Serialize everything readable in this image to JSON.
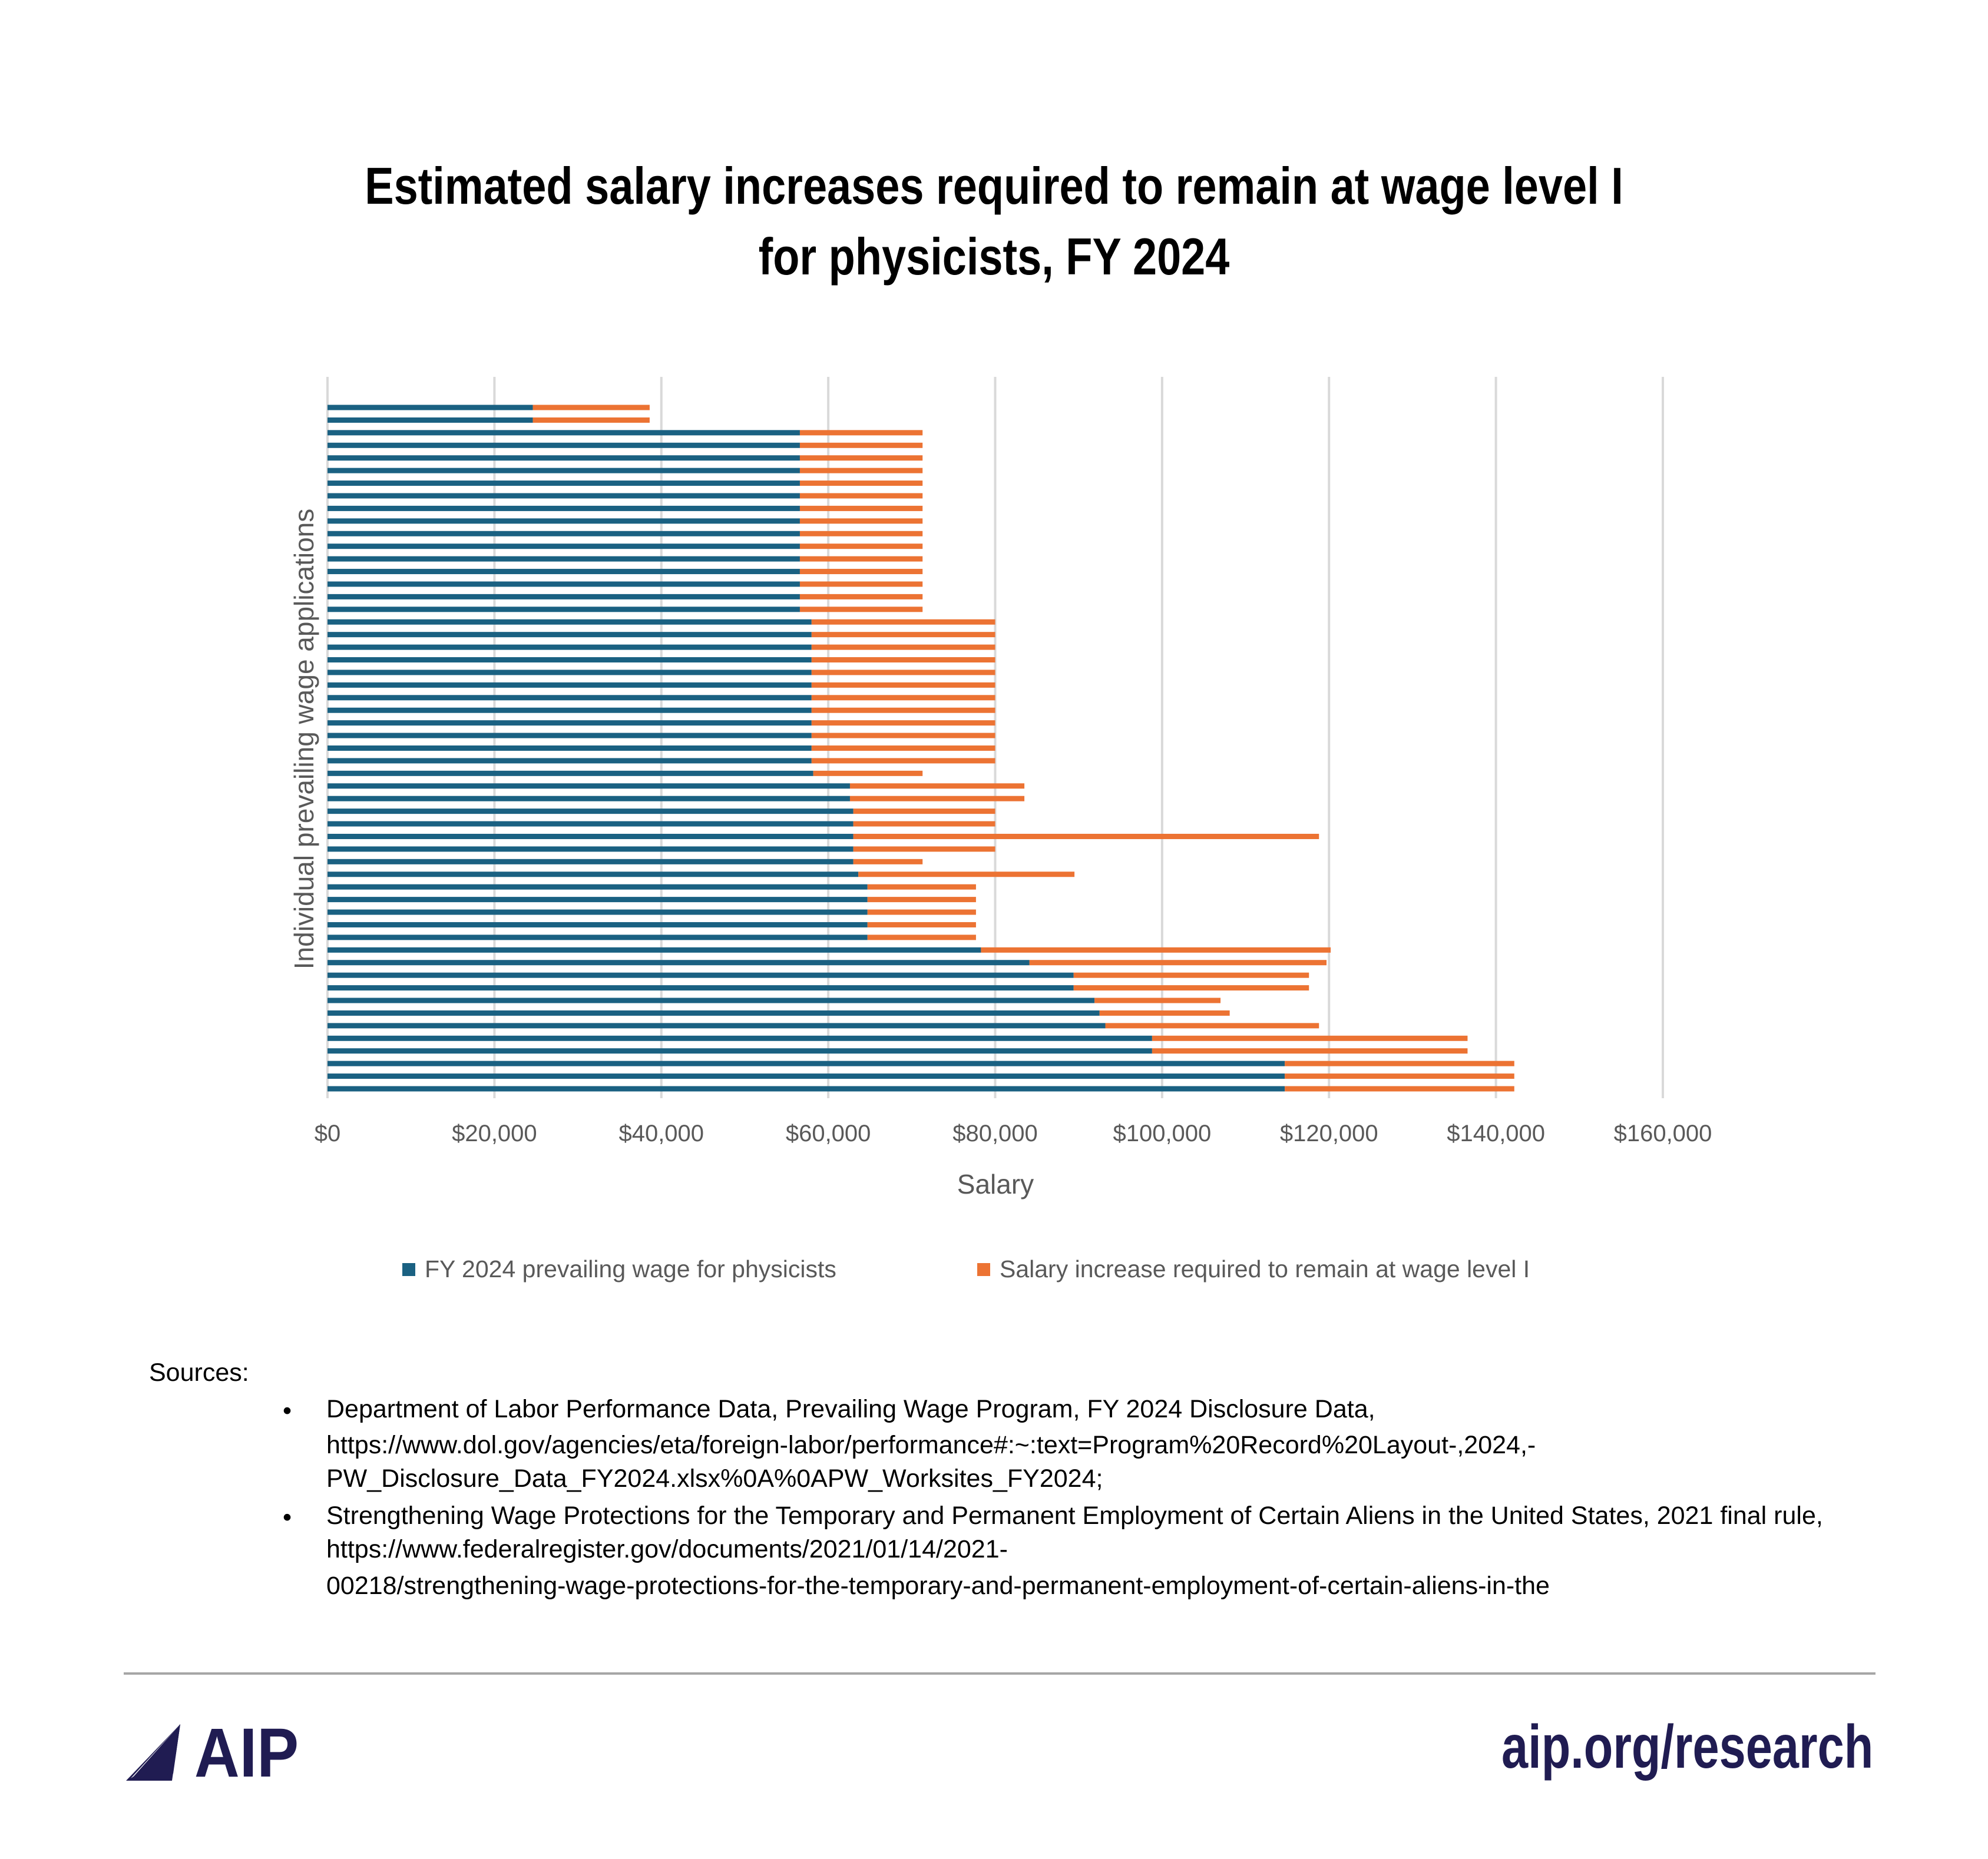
{
  "chart_data": {
    "type": "bar",
    "orientation": "horizontal",
    "stacked": true,
    "title": "Estimated salary increases required to remain at wage level I for physicists, FY 2024",
    "title_lines": [
      "Estimated salary increases required to remain at wage level I",
      "for physicists, FY 2024"
    ],
    "xlabel": "Salary",
    "ylabel": "Individual prevailing wage applications",
    "xlim": [
      0,
      160000
    ],
    "x_ticks": [
      0,
      20000,
      40000,
      60000,
      80000,
      100000,
      120000,
      140000,
      160000
    ],
    "x_tick_labels": [
      "$0",
      "$20,000",
      "$40,000",
      "$60,000",
      "$80,000",
      "$100,000",
      "$120,000",
      "$140,000",
      "$160,000"
    ],
    "grid": "vertical",
    "legend_position": "bottom",
    "series": [
      {
        "name": "FY 2024 prevailing wage for physicists",
        "color": "#1a6182",
        "values": [
          24600,
          24600,
          56600,
          56600,
          56600,
          56600,
          56600,
          56600,
          56600,
          56600,
          56600,
          56600,
          56600,
          56600,
          56600,
          56600,
          56600,
          58000,
          58000,
          58000,
          58000,
          58000,
          58000,
          58000,
          58000,
          58000,
          58000,
          58000,
          58000,
          58200,
          62600,
          62600,
          63000,
          63000,
          63000,
          63000,
          63000,
          63600,
          64700,
          64700,
          64700,
          64700,
          64700,
          78300,
          84100,
          89400,
          89400,
          91900,
          92500,
          93200,
          98800,
          98800,
          114700,
          114700,
          114700
        ]
      },
      {
        "name": "Salary increase required to remain at wage level I",
        "color": "#ec7333",
        "values": [
          14000,
          14000,
          14700,
          14700,
          14700,
          14700,
          14700,
          14700,
          14700,
          14700,
          14700,
          14700,
          14700,
          14700,
          14700,
          14700,
          14700,
          22000,
          22000,
          22000,
          22000,
          22000,
          22000,
          22000,
          22000,
          22000,
          22000,
          22000,
          22000,
          13100,
          20900,
          20900,
          17000,
          17000,
          55800,
          17000,
          8300,
          25900,
          13000,
          13000,
          13000,
          13000,
          13000,
          41900,
          35600,
          28200,
          28200,
          15100,
          15600,
          25600,
          37800,
          37800,
          27500,
          27500,
          27500
        ]
      }
    ]
  },
  "sources": {
    "heading": "Sources:",
    "bullet": "•",
    "items": [
      {
        "lines": [
          "Department of Labor Performance Data, Prevailing Wage Program, FY 2024 Disclosure Data,",
          "https://www.dol.gov/agencies/eta/foreign-labor/performance#:~:text=Program%20Record%20Layout-,2024,-",
          "PW_Disclosure_Data_FY2024.xlsx%0A%0APW_Worksites_FY2024;"
        ]
      },
      {
        "lines": [
          "Strengthening Wage Protections for the Temporary and Permanent Employment of Certain Aliens in the United States, 2021 final rule,",
          "https://www.federalregister.gov/documents/2021/01/14/2021-",
          "00218/strengthening-wage-protections-for-the-temporary-and-permanent-employment-of-certain-aliens-in-the"
        ]
      }
    ]
  },
  "footer": {
    "logo_text": "AIP",
    "url": "aip.org/research",
    "brand_color": "#201c52"
  }
}
